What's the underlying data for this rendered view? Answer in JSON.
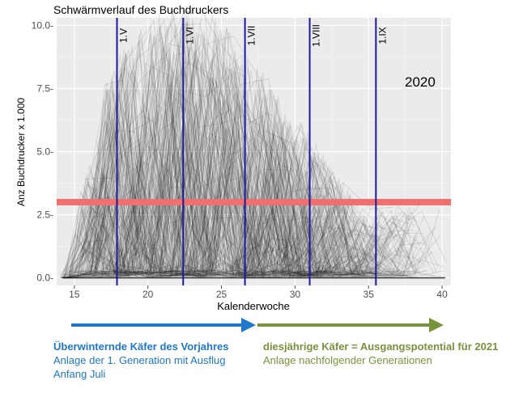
{
  "chart_data": {
    "type": "line",
    "title": "Schwärmverlauf des Buchdruckers",
    "xlabel": "Kalenderwoche",
    "ylabel": "Anz Buchdrucker x 1.000",
    "xlim": [
      13.8,
      40.6
    ],
    "ylim": [
      -0.3,
      10.3
    ],
    "x_ticks": [
      15,
      20,
      25,
      30,
      35,
      40
    ],
    "x_tick_labels": [
      "15",
      "20",
      "25",
      "30",
      "35",
      "40"
    ],
    "y_ticks": [
      0,
      2.5,
      5,
      7.5,
      10
    ],
    "y_tick_labels": [
      "0.0-",
      "2.5-",
      "5.0-",
      "7.5-",
      "10.0-"
    ],
    "year_label": "2020",
    "grid": true,
    "background_color": "#ebebeb",
    "threshold": {
      "value": 3.0,
      "color": "#f07070"
    },
    "vlines": {
      "color": "#1a1a9c",
      "items": [
        {
          "x": 17.9,
          "label": "1.V"
        },
        {
          "x": 22.4,
          "label": "1.VI"
        },
        {
          "x": 26.6,
          "label": "1.VII"
        },
        {
          "x": 31.0,
          "label": "1.VIII"
        },
        {
          "x": 35.5,
          "label": "1.IX"
        }
      ]
    },
    "series_style": {
      "color": "#000000",
      "opacity": 0.1,
      "count": 220
    }
  },
  "captions": {
    "left_bold": "Überwinternde Käfer des Vorjahres",
    "left_line2": "Anlage der 1. Generation mit Ausflug",
    "left_line3": "Anfang Juli",
    "right_bold": "diesjährige Käfer = Ausgangspotential für 2021",
    "right_line2": "Anlage nachfolgender Generationen"
  },
  "arrows": {
    "blue": "#1f77c9",
    "green": "#77933c"
  }
}
